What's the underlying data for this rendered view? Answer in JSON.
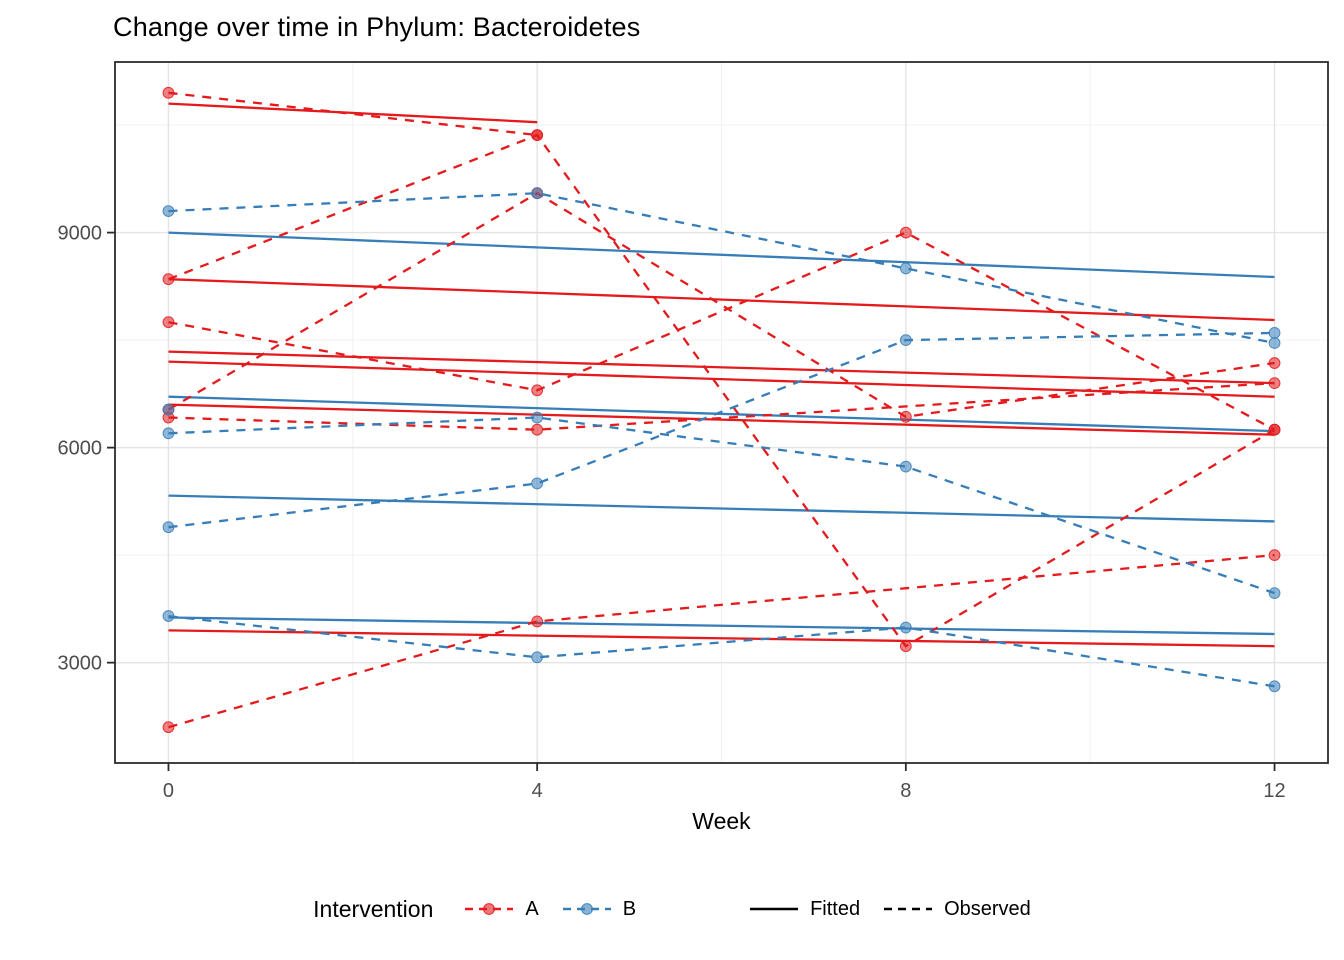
{
  "legend": {
    "title": "Intervention",
    "groups": [
      {
        "label": "A",
        "color": "#e41a1c"
      },
      {
        "label": "B",
        "color": "#377eb8"
      }
    ],
    "linetypes": [
      {
        "label": "Fitted",
        "style": "solid"
      },
      {
        "label": "Observed",
        "style": "dashed"
      }
    ]
  },
  "colors": {
    "A": "#e41a1c",
    "B": "#377eb8",
    "axis_text": "#4d4d4d",
    "panel_border": "#2b2b2b",
    "grid_major": "#e4e4e4",
    "grid_minor": "#f1f1f1"
  },
  "chart_data": {
    "type": "line",
    "title": "Change over time in Phylum: Bacteroidetes",
    "xlabel": "Week",
    "ylabel": "",
    "x_ticks": [
      0,
      4,
      8,
      12
    ],
    "x_minor": [
      2,
      6,
      10
    ],
    "y_ticks": [
      3000,
      6000,
      9000
    ],
    "y_minor": [
      4500,
      7500,
      10500
    ],
    "xlim": [
      -0.58,
      12.58
    ],
    "ylim": [
      1600,
      11380
    ],
    "grid": true,
    "legend_position": "bottom",
    "series": [
      {
        "group": "A",
        "kind": "fitted",
        "x": [
          0,
          4
        ],
        "y": [
          10800,
          10540
        ]
      },
      {
        "group": "A",
        "kind": "fitted",
        "x": [
          0,
          12
        ],
        "y": [
          8350,
          7780
        ]
      },
      {
        "group": "A",
        "kind": "fitted",
        "x": [
          0,
          12
        ],
        "y": [
          7340,
          6900
        ]
      },
      {
        "group": "A",
        "kind": "fitted",
        "x": [
          0,
          12
        ],
        "y": [
          7200,
          6710
        ]
      },
      {
        "group": "A",
        "kind": "fitted",
        "x": [
          0,
          12
        ],
        "y": [
          6600,
          6180
        ]
      },
      {
        "group": "A",
        "kind": "fitted",
        "x": [
          0,
          12
        ],
        "y": [
          3450,
          3230
        ]
      },
      {
        "group": "B",
        "kind": "fitted",
        "x": [
          0,
          12
        ],
        "y": [
          9000,
          8380
        ]
      },
      {
        "group": "B",
        "kind": "fitted",
        "x": [
          0,
          12
        ],
        "y": [
          6710,
          6230
        ]
      },
      {
        "group": "B",
        "kind": "fitted",
        "x": [
          0,
          12
        ],
        "y": [
          5330,
          4970
        ]
      },
      {
        "group": "B",
        "kind": "fitted",
        "x": [
          0,
          12
        ],
        "y": [
          3630,
          3400
        ]
      },
      {
        "group": "A",
        "kind": "observed",
        "x": [
          0,
          4
        ],
        "y": [
          10950,
          10360
        ]
      },
      {
        "group": "A",
        "kind": "observed",
        "x": [
          0,
          4,
          8,
          12
        ],
        "y": [
          8350,
          10360,
          3230,
          6250
        ]
      },
      {
        "group": "A",
        "kind": "observed",
        "x": [
          0,
          4,
          8,
          12
        ],
        "y": [
          6530,
          9550,
          6430,
          7180
        ]
      },
      {
        "group": "A",
        "kind": "observed",
        "x": [
          0,
          4,
          8,
          12
        ],
        "y": [
          7750,
          6800,
          9000,
          6250
        ]
      },
      {
        "group": "A",
        "kind": "observed",
        "x": [
          0,
          4,
          12
        ],
        "y": [
          6420,
          6250,
          6900
        ]
      },
      {
        "group": "A",
        "kind": "observed",
        "x": [
          0,
          4,
          12
        ],
        "y": [
          2100,
          3575,
          4500
        ]
      },
      {
        "group": "B",
        "kind": "observed",
        "x": [
          0,
          4,
          8,
          12
        ],
        "y": [
          9300,
          9550,
          8500,
          7460
        ]
      },
      {
        "group": "B",
        "kind": "observed",
        "x": [
          0,
          4,
          8,
          12
        ],
        "y": [
          6200,
          6420,
          5735,
          3970
        ]
      },
      {
        "group": "B",
        "kind": "observed",
        "x": [
          0,
          4,
          8,
          12
        ],
        "y": [
          4890,
          5500,
          7500,
          7600
        ]
      },
      {
        "group": "B",
        "kind": "observed",
        "x": [
          0,
          4,
          8,
          12
        ],
        "y": [
          3650,
          3075,
          3490,
          2670
        ]
      },
      {
        "group": "B",
        "kind": "observed",
        "x": [
          0
        ],
        "y": [
          6530
        ]
      }
    ]
  }
}
